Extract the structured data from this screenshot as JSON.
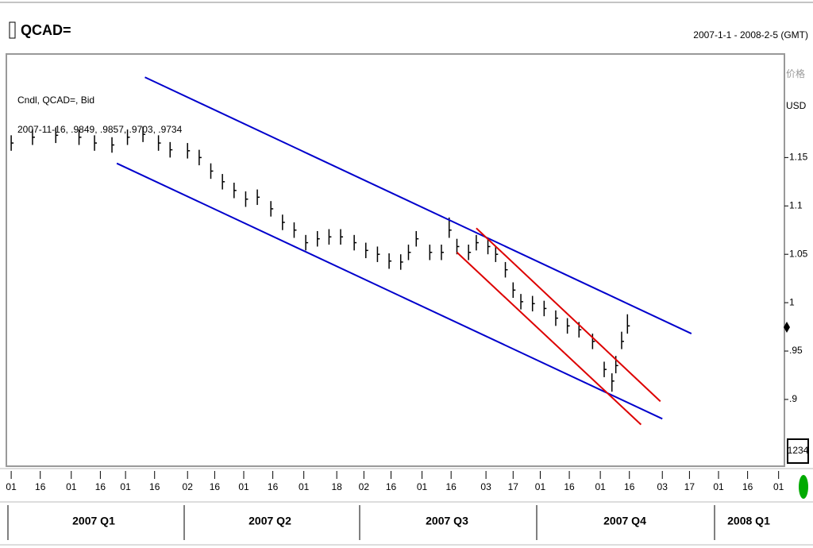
{
  "header": {
    "title": "QCAD=",
    "range": "2007-1-1 - 2008-2-5 (GMT)"
  },
  "chart_data": {
    "type": "ohlc",
    "legend_lines": [
      "Cndl, QCAD=, Bid",
      "2007-11-16, .9849, .9857, .9703, .9734"
    ],
    "y_axis_labels": [
      "价格",
      "USD"
    ],
    "price_box": "1234",
    "color": "#000000",
    "x": [
      0,
      11,
      23,
      35,
      43,
      52,
      60,
      68,
      76,
      82,
      91,
      97,
      103,
      109,
      115,
      121,
      127,
      134,
      140,
      146,
      152,
      158,
      164,
      170,
      177,
      183,
      189,
      195,
      201,
      205,
      209,
      216,
      222,
      226,
      230,
      236,
      240,
      246,
      250,
      255,
      259,
      263,
      269,
      275,
      281,
      287,
      293,
      300,
      306,
      310,
      312,
      315,
      318
    ],
    "high": [
      1.173,
      1.179,
      1.181,
      1.179,
      1.173,
      1.171,
      1.179,
      1.182,
      1.173,
      1.166,
      1.165,
      1.158,
      1.144,
      1.133,
      1.124,
      1.115,
      1.117,
      1.105,
      1.091,
      1.083,
      1.07,
      1.074,
      1.076,
      1.076,
      1.07,
      1.062,
      1.058,
      1.051,
      1.05,
      1.06,
      1.074,
      1.06,
      1.06,
      1.088,
      1.066,
      1.06,
      1.07,
      1.066,
      1.058,
      1.042,
      1.021,
      1.009,
      1.007,
      1.002,
      0.992,
      0.984,
      0.98,
      0.968,
      0.939,
      0.927,
      0.945,
      0.97,
      0.988
    ],
    "low": [
      1.157,
      1.163,
      1.165,
      1.163,
      1.157,
      1.155,
      1.163,
      1.166,
      1.157,
      1.15,
      1.149,
      1.142,
      1.128,
      1.117,
      1.108,
      1.099,
      1.101,
      1.089,
      1.075,
      1.067,
      1.054,
      1.058,
      1.06,
      1.06,
      1.054,
      1.046,
      1.042,
      1.035,
      1.034,
      1.044,
      1.058,
      1.044,
      1.044,
      1.067,
      1.05,
      1.044,
      1.054,
      1.05,
      1.042,
      1.026,
      1.005,
      0.993,
      0.991,
      0.986,
      0.976,
      0.968,
      0.964,
      0.952,
      0.923,
      0.908,
      0.927,
      0.952,
      0.968
    ],
    "close": [
      1.165,
      1.171,
      1.173,
      1.171,
      1.165,
      1.163,
      1.171,
      1.174,
      1.165,
      1.158,
      1.157,
      1.15,
      1.136,
      1.125,
      1.116,
      1.107,
      1.109,
      1.097,
      1.083,
      1.075,
      1.062,
      1.066,
      1.068,
      1.068,
      1.062,
      1.054,
      1.05,
      1.043,
      1.042,
      1.052,
      1.066,
      1.052,
      1.052,
      1.075,
      1.058,
      1.052,
      1.062,
      1.058,
      1.05,
      1.034,
      1.013,
      1.001,
      0.999,
      0.994,
      0.984,
      0.976,
      0.972,
      0.96,
      0.931,
      0.919,
      0.935,
      0.96,
      0.976
    ],
    "trendlines": [
      {
        "color": "#0000cc",
        "x": [
          69,
          351
        ],
        "y": [
          1.233,
          0.968
        ]
      },
      {
        "color": "#0000cc",
        "x": [
          54.5,
          336
        ],
        "y": [
          1.144,
          0.88
        ]
      },
      {
        "color": "#dd0000",
        "x": [
          240,
          335
        ],
        "y": [
          1.077,
          0.898
        ]
      },
      {
        "color": "#dd0000",
        "x": [
          230,
          325
        ],
        "y": [
          1.052,
          0.874
        ]
      }
    ],
    "xlim": [
      -2.5,
      399
    ],
    "xticks": [
      {
        "value": 0,
        "label": "01"
      },
      {
        "value": 15,
        "label": "16"
      },
      {
        "value": 31,
        "label": "01"
      },
      {
        "value": 46,
        "label": "16"
      },
      {
        "value": 59,
        "label": "01"
      },
      {
        "value": 74,
        "label": "16"
      },
      {
        "value": 91,
        "label": "02"
      },
      {
        "value": 105,
        "label": "16"
      },
      {
        "value": 120,
        "label": "01"
      },
      {
        "value": 135,
        "label": "16"
      },
      {
        "value": 151,
        "label": "01"
      },
      {
        "value": 168,
        "label": "18"
      },
      {
        "value": 182,
        "label": "02"
      },
      {
        "value": 196,
        "label": "16"
      },
      {
        "value": 212,
        "label": "01"
      },
      {
        "value": 227,
        "label": "16"
      },
      {
        "value": 245,
        "label": "03"
      },
      {
        "value": 259,
        "label": "17"
      },
      {
        "value": 273,
        "label": "01"
      },
      {
        "value": 288,
        "label": "16"
      },
      {
        "value": 304,
        "label": "01"
      },
      {
        "value": 319,
        "label": "16"
      },
      {
        "value": 336,
        "label": "03"
      },
      {
        "value": 350,
        "label": "17"
      },
      {
        "value": 365,
        "label": "01"
      },
      {
        "value": 380,
        "label": "16"
      },
      {
        "value": 396,
        "label": "01"
      }
    ],
    "quarters": [
      "2007 Q1",
      "2007 Q2",
      "2007 Q3",
      "2007 Q4",
      "2008 Q1"
    ],
    "ylim": [
      0.831,
      1.257
    ],
    "yticks": [
      1.15,
      1.1,
      1.05,
      1,
      {
        "value": 0.95,
        "label": ".95"
      },
      {
        "value": 0.9,
        "label": ".9"
      }
    ]
  }
}
